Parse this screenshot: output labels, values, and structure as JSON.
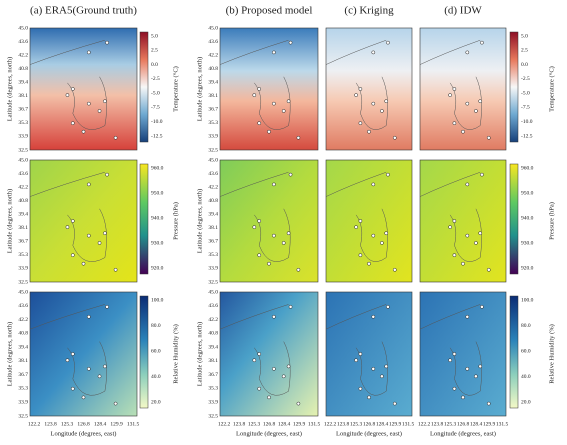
{
  "columns": [
    "(a) ERA5(Ground truth)",
    "(b) Proposed model",
    "(c) Kriging",
    "(d) IDW"
  ],
  "latitude_axis": {
    "label": "Latitude (degrees, north)",
    "ticks": [
      "45.0",
      "43.6",
      "42.2",
      "40.8",
      "39.4",
      "38.1",
      "36.7",
      "35.3",
      "33.9",
      "32.5"
    ]
  },
  "longitude_axis": {
    "label": "Longitude (degrees, east)",
    "ticks": [
      "122.2",
      "123.8",
      "125.3",
      "126.8",
      "128.4",
      "129.9",
      "131.5"
    ]
  },
  "rows": [
    {
      "colorbar_label": "Temperature (°C)",
      "colorbar_ticks": [
        "5.0",
        "2.5",
        "0.0",
        "-2.5",
        "-5.0",
        "-7.5",
        "-10.0",
        "-12.5"
      ]
    },
    {
      "colorbar_label": "Pressure (hPa)",
      "colorbar_ticks": [
        "960.0",
        "950.0",
        "940.0",
        "930.0",
        "920.0"
      ]
    },
    {
      "colorbar_label": "Relative Humidity (%)",
      "colorbar_ticks": [
        "100.0",
        "80.0",
        "60.0",
        "40.0",
        "20.0"
      ]
    }
  ]
}
